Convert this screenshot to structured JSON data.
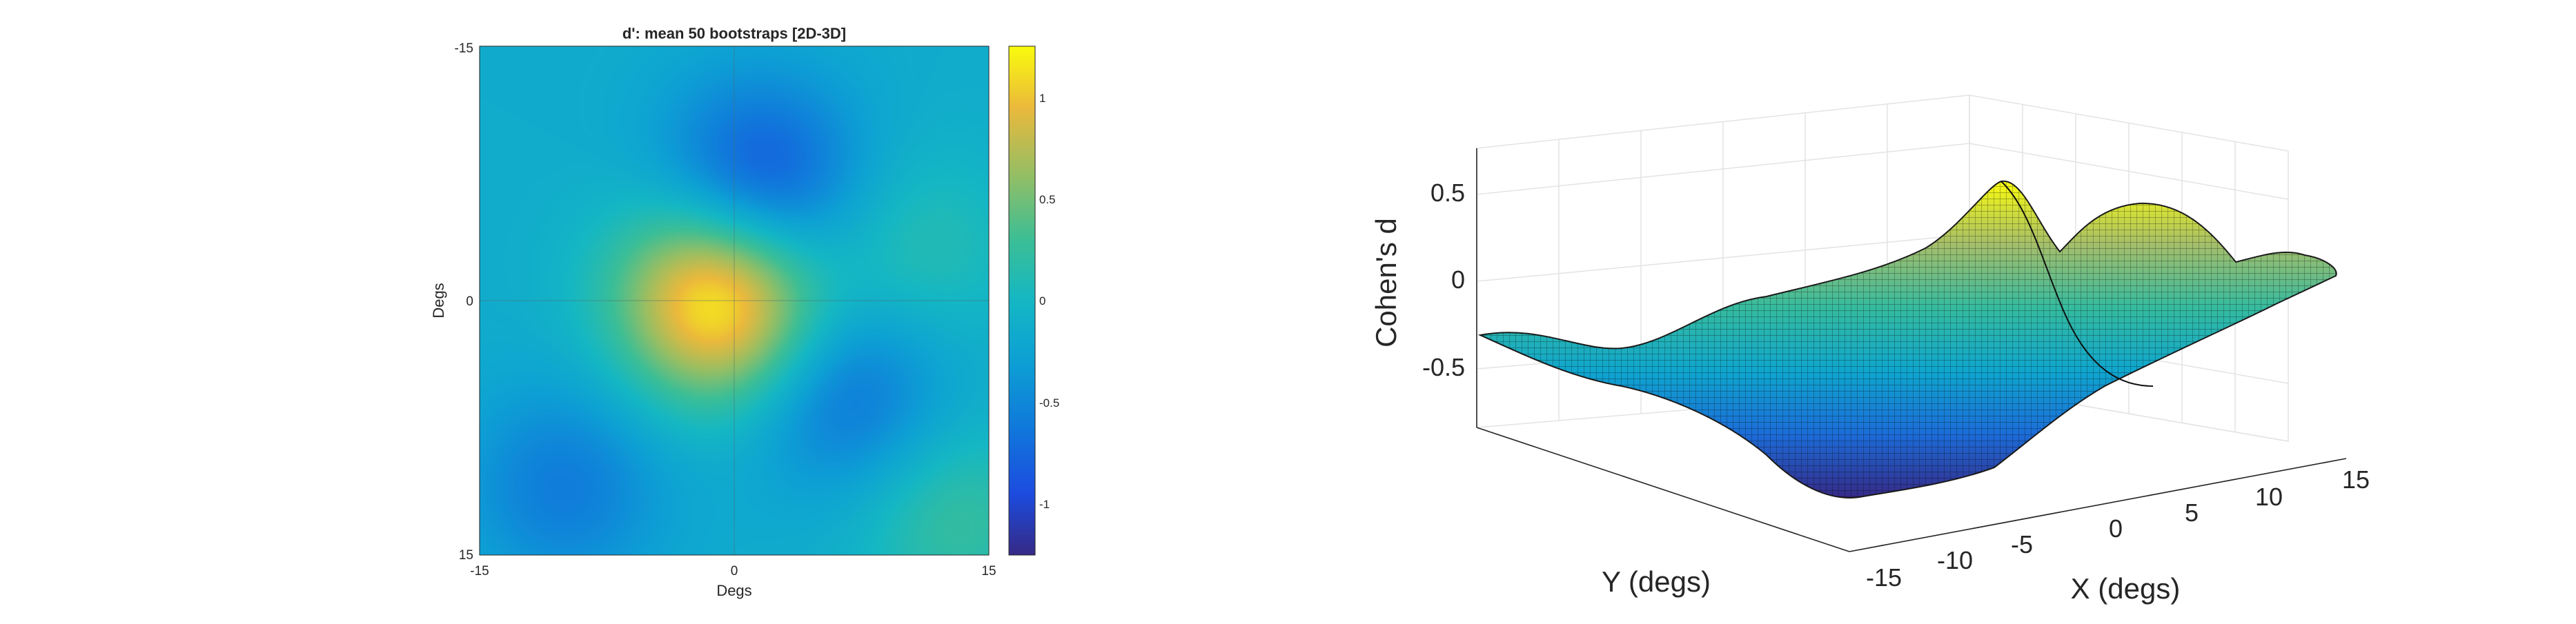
{
  "chart_data": [
    {
      "type": "heatmap",
      "title": "d': mean 50 bootstraps [2D-3D]",
      "xlabel": "Degs",
      "ylabel": "Degs",
      "xlim": [
        -15,
        15
      ],
      "ylim": [
        -15,
        15
      ],
      "y_reversed": true,
      "x_ticks": [
        "-15",
        "0",
        "15"
      ],
      "y_ticks": [
        "-15",
        "0",
        "15"
      ],
      "colorbar": {
        "ticks": [
          "1",
          "0.5",
          "0",
          "-0.5",
          "-1"
        ],
        "range": [
          -1.25,
          1.25
        ],
        "colormap": "parula"
      },
      "background_value": -0.15,
      "blobs": [
        {
          "x": -0.5,
          "y": 0.5,
          "value": 0.95
        },
        {
          "x": -2.0,
          "y": -1.5,
          "value": 0.25
        },
        {
          "x": 1.5,
          "y": -7.0,
          "value": -0.95
        },
        {
          "x": 6.5,
          "y": 5.5,
          "value": -0.7
        },
        {
          "x": -10.0,
          "y": 11.0,
          "value": -0.6
        },
        {
          "x": 13.0,
          "y": 13.0,
          "value": 0.25
        },
        {
          "x": 11.0,
          "y": -3.0,
          "value": 0.15
        }
      ]
    },
    {
      "type": "surface",
      "zlabel": "Cohen's d",
      "xlabel": "X (degs)",
      "ylabel": "Y (degs)",
      "x_ticks": [
        "-15",
        "-10",
        "-5",
        "0",
        "5",
        "10",
        "15"
      ],
      "z_ticks": [
        "0.5",
        "0",
        "-0.5"
      ],
      "zlim": [
        -0.8,
        0.8
      ],
      "colormap": "parula"
    }
  ]
}
